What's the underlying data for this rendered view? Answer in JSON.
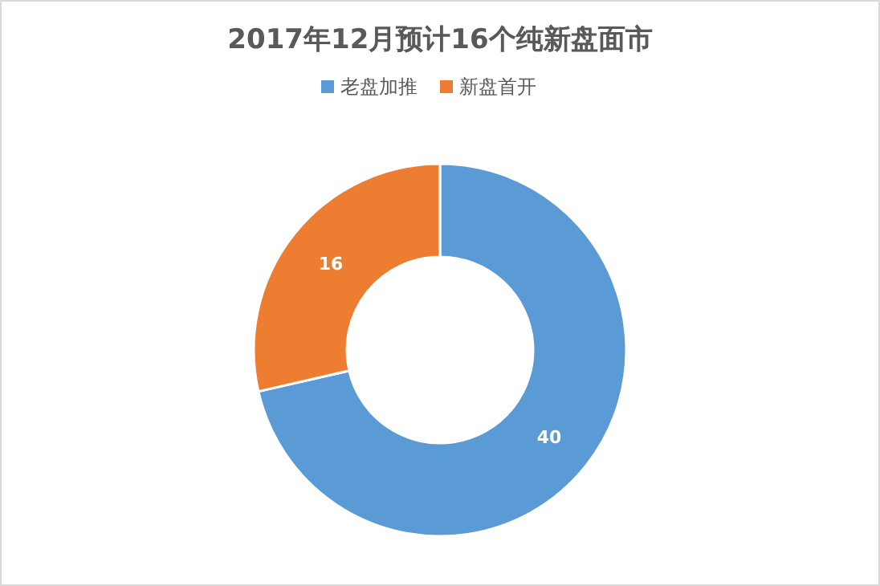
{
  "chart_data": {
    "type": "donut",
    "title": "2017年12月预计16个纯新盘面市",
    "categories": [
      "老盘加推",
      "新盘首开"
    ],
    "values": [
      40,
      16
    ],
    "colors": [
      "#5b9bd5",
      "#ed7d31"
    ],
    "data_labels": true,
    "legend": "top"
  }
}
